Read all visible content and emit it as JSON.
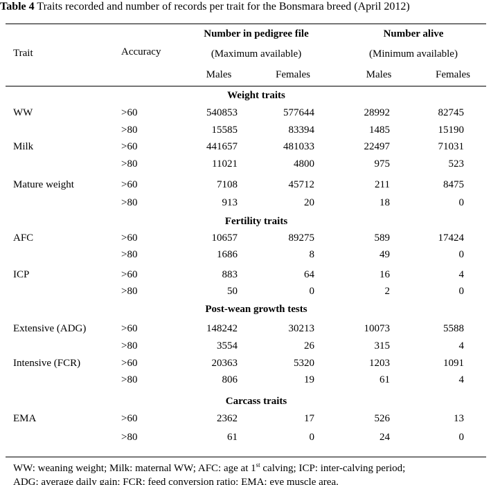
{
  "title": {
    "label": "Table 4",
    "text": "Traits recorded and number of records per trait for the Bonsmara breed (April 2012)"
  },
  "header": {
    "trait": "Trait",
    "accuracy": "Accuracy",
    "pedigree_group": "Number in pedigree file",
    "pedigree_sub": "(Maximum available)",
    "alive_group": "Number alive",
    "alive_sub": "(Minimum available)",
    "males": "Males",
    "females": "Females"
  },
  "rows": [
    {
      "section": "Weight traits"
    },
    {
      "trait": "WW",
      "accuracy": ">60",
      "ped_males": "540853",
      "ped_females": "577644",
      "alive_males": "28992",
      "alive_females": "82745"
    },
    {
      "trait": "",
      "accuracy": ">80",
      "ped_males": "15585",
      "ped_females": "83394",
      "alive_males": "1485",
      "alive_females": "15190"
    },
    {
      "trait": "Milk",
      "accuracy": ">60",
      "ped_males": "441657",
      "ped_females": "481033",
      "alive_males": "22497",
      "alive_females": "71031"
    },
    {
      "trait": "",
      "accuracy": ">80",
      "ped_males": "11021",
      "ped_females": "4800",
      "alive_males": "975",
      "alive_females": "523"
    },
    {
      "trait": "Mature weight",
      "accuracy": ">60",
      "ped_males": "7108",
      "ped_females": "45712",
      "alive_males": "211",
      "alive_females": "8475"
    },
    {
      "trait": "",
      "accuracy": ">80",
      "ped_males": "913",
      "ped_females": "20",
      "alive_males": "18",
      "alive_females": "0"
    },
    {
      "section": "Fertility traits"
    },
    {
      "trait": "AFC",
      "accuracy": ">60",
      "ped_males": "10657",
      "ped_females": "89275",
      "alive_males": "589",
      "alive_females": "17424"
    },
    {
      "trait": "",
      "accuracy": ">80",
      "ped_males": "1686",
      "ped_females": "8",
      "alive_males": "49",
      "alive_females": "0"
    },
    {
      "trait": "ICP",
      "accuracy": ">60",
      "ped_males": "883",
      "ped_females": "64",
      "alive_males": "16",
      "alive_females": "4"
    },
    {
      "trait": "",
      "accuracy": ">80",
      "ped_males": "50",
      "ped_females": "0",
      "alive_males": "2",
      "alive_females": "0"
    },
    {
      "section": "Post-wean growth tests"
    },
    {
      "trait": "Extensive (ADG)",
      "accuracy": ">60",
      "ped_males": "148242",
      "ped_females": "30213",
      "alive_males": "10073",
      "alive_females": "5588"
    },
    {
      "trait": "",
      "accuracy": ">80",
      "ped_males": "3554",
      "ped_females": "26",
      "alive_males": "315",
      "alive_females": "4"
    },
    {
      "trait": "Intensive (FCR)",
      "accuracy": ">60",
      "ped_males": "20363",
      "ped_females": "5320",
      "alive_males": "1203",
      "alive_females": "1091"
    },
    {
      "trait": "",
      "accuracy": ">80",
      "ped_males": "806",
      "ped_females": "19",
      "alive_males": "61",
      "alive_females": "4"
    },
    {
      "section": "Carcass traits"
    },
    {
      "trait": "EMA",
      "accuracy": ">60",
      "ped_males": "2362",
      "ped_females": "17",
      "alive_males": "526",
      "alive_females": "13"
    },
    {
      "trait": "",
      "accuracy": ">80",
      "ped_males": "61",
      "ped_females": "0",
      "alive_males": "24",
      "alive_females": "0"
    }
  ],
  "footnote": {
    "line1_a": "WW: weaning weight; Milk: maternal WW; AFC: age at 1",
    "line1_sup": "st",
    "line1_b": " calving; ICP: inter-calving period;",
    "line2": "ADG: average daily gain; FCR: feed conversion ratio; EMA: eye muscle area."
  }
}
